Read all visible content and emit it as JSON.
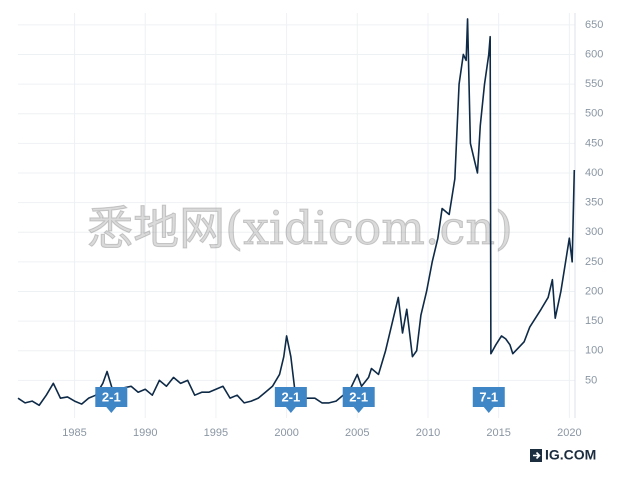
{
  "chart_data": {
    "type": "line",
    "watermark": "悉地网(xidicom.cn)",
    "source": "IG.COM",
    "xlim": [
      1981,
      2020.4
    ],
    "xticks": [
      1985,
      1990,
      1995,
      2000,
      2005,
      2010,
      2015,
      2020
    ],
    "ylim": [
      0,
      670
    ],
    "yticks": [
      50,
      100,
      150,
      200,
      250,
      300,
      350,
      400,
      450,
      500,
      550,
      600,
      650
    ],
    "grid": true,
    "series": [
      {
        "color": "#0e2a47",
        "x": [
          1981,
          1981.5,
          1982,
          1982.5,
          1983,
          1983.5,
          1984,
          1984.5,
          1985,
          1985.5,
          1986,
          1986.5,
          1987,
          1987.3,
          1987.8,
          1988,
          1989,
          1989.5,
          1990,
          1990.5,
          1991,
          1991.5,
          1992,
          1992.5,
          1993,
          1993.5,
          1994,
          1994.5,
          1995,
          1995.5,
          1996,
          1996.5,
          1997,
          1997.5,
          1998,
          1998.5,
          1999,
          1999.5,
          1999.8,
          2000,
          2000.3,
          2000.6,
          2001,
          2001.5,
          2002,
          2002.5,
          2003,
          2003.5,
          2004,
          2004.5,
          2005,
          2005.3,
          2005.8,
          2006,
          2006.5,
          2007,
          2007.5,
          2007.9,
          2008.2,
          2008.5,
          2008.9,
          2009.2,
          2009.5,
          2009.9,
          2010.3,
          2010.7,
          2011,
          2011.5,
          2011.9,
          2012.2,
          2012.5,
          2012.7,
          2012.8,
          2013,
          2013.3,
          2013.5,
          2013.7,
          2014,
          2014.3,
          2014.4,
          2014.45,
          2014.8,
          2015.2,
          2015.5,
          2015.8,
          2016,
          2016.4,
          2016.8,
          2017.2,
          2017.6,
          2018,
          2018.5,
          2018.8,
          2019,
          2019.4,
          2019.8,
          2020,
          2020.2,
          2020.35
        ],
        "values": [
          20,
          12,
          15,
          8,
          25,
          45,
          20,
          22,
          15,
          10,
          20,
          25,
          45,
          65,
          25,
          35,
          40,
          30,
          35,
          25,
          50,
          40,
          55,
          45,
          50,
          25,
          30,
          30,
          35,
          40,
          20,
          25,
          12,
          15,
          20,
          30,
          40,
          60,
          90,
          125,
          90,
          30,
          20,
          20,
          20,
          12,
          12,
          15,
          25,
          35,
          60,
          40,
          55,
          70,
          60,
          100,
          150,
          190,
          130,
          170,
          90,
          100,
          160,
          200,
          250,
          290,
          340,
          330,
          390,
          550,
          600,
          590,
          660,
          450,
          420,
          400,
          480,
          550,
          600,
          630,
          95,
          110,
          125,
          120,
          110,
          95,
          105,
          115,
          140,
          155,
          170,
          190,
          220,
          155,
          200,
          260,
          290,
          250,
          405
        ]
      }
    ],
    "annotations": [
      {
        "x": 1987.6,
        "label": "2-1"
      },
      {
        "x": 2000.3,
        "label": "2-1"
      },
      {
        "x": 2005.1,
        "label": "2-1"
      },
      {
        "x": 2014.3,
        "label": "7-1"
      }
    ]
  }
}
